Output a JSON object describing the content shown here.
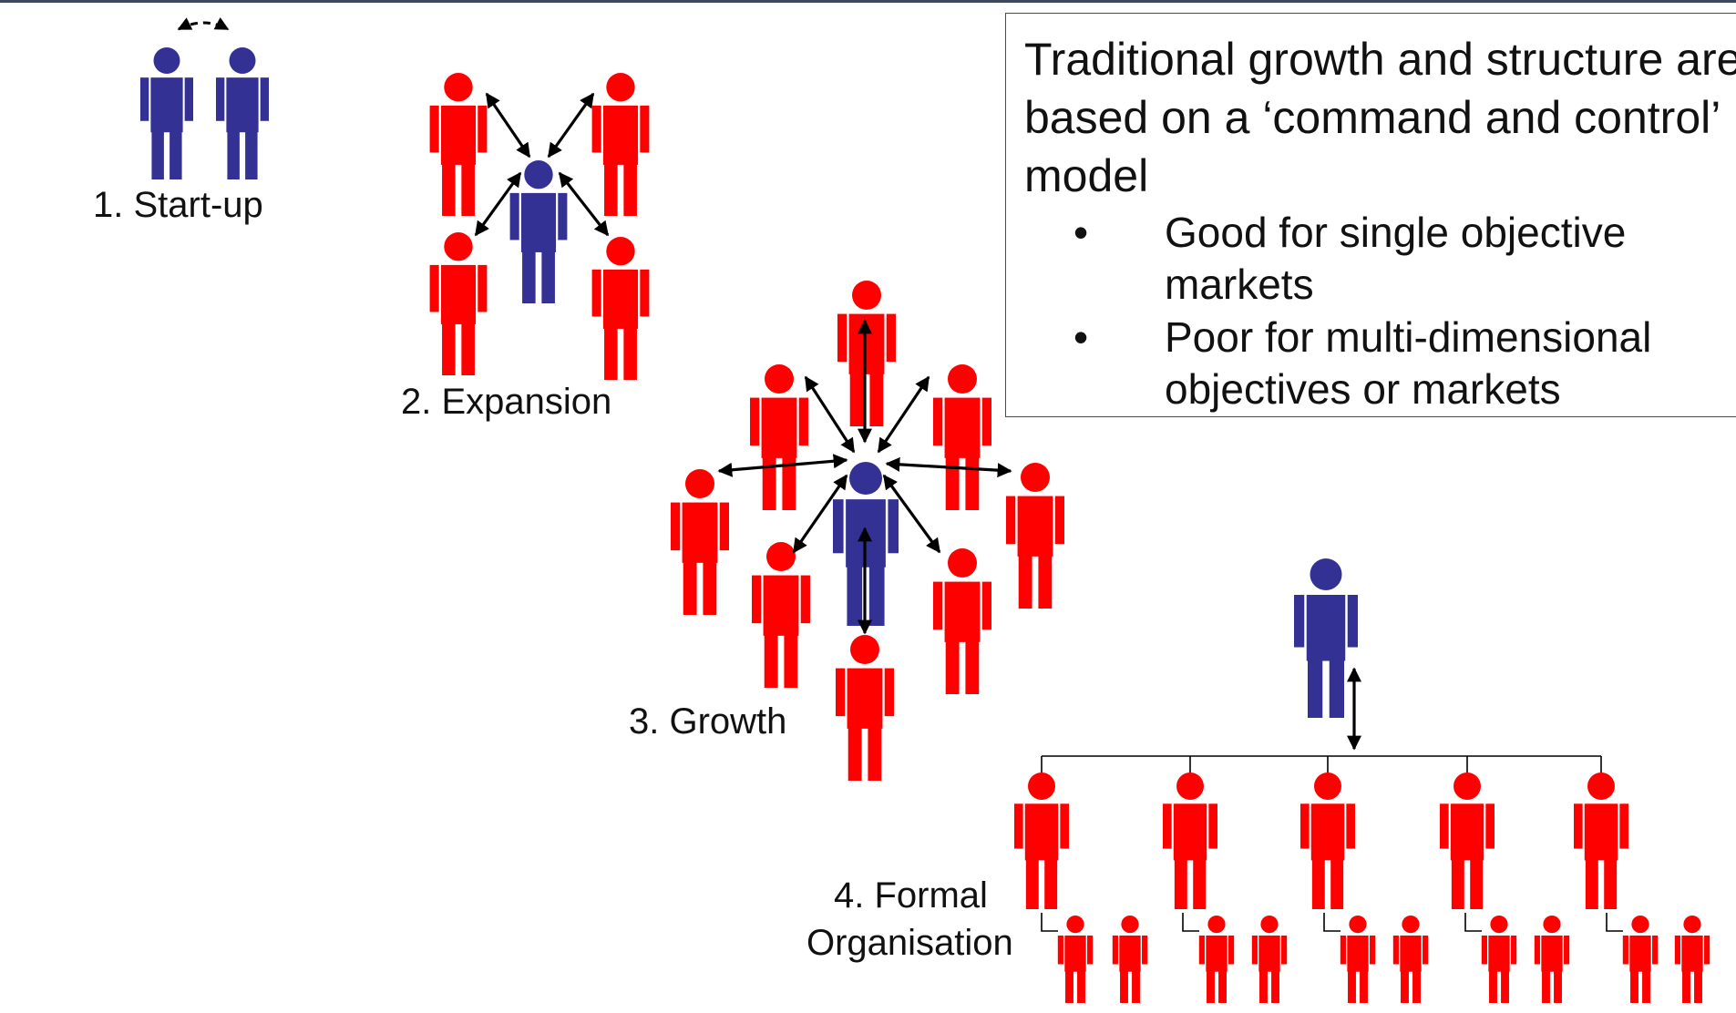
{
  "colors": {
    "leader": "#343194",
    "staff": "#ff0000",
    "arrow": "#000000",
    "line": "#000000"
  },
  "icons": {
    "person": "person-icon",
    "arrow": "double-arrow-icon"
  },
  "stages": [
    {
      "label": "1. Start-up"
    },
    {
      "label": "2. Expansion"
    },
    {
      "label": "3. Growth"
    },
    {
      "label_line1": "4. Formal",
      "label_line2": "Organisation"
    }
  ],
  "info_box": {
    "title": "Traditional growth and structure are based on a ‘command and control’ model",
    "bullet_symbol": "•",
    "bullets": [
      "Good for single objective markets",
      "Poor for multi-dimensional objectives or markets"
    ]
  }
}
